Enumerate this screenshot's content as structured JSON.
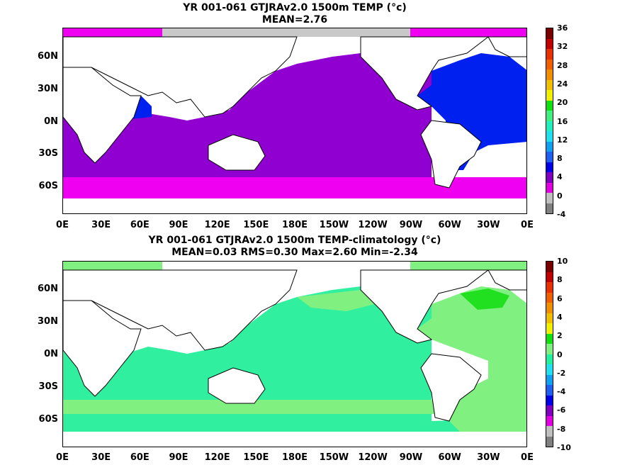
{
  "top_panel": {
    "title_line1": "YR 001-061 GTJRAv2.0 1500m TEMP (°c)",
    "title_line2": "MEAN=2.76",
    "colorbar_labels": [
      "36",
      "32",
      "28",
      "24",
      "20",
      "16",
      "12",
      "8",
      "4",
      "0",
      "-4"
    ],
    "colorbar_colors": [
      "#7a0000",
      "#c00000",
      "#e83000",
      "#f06000",
      "#f09000",
      "#f0c000",
      "#f0f000",
      "#10e010",
      "#40f080",
      "#20f0c0",
      "#20e0f0",
      "#10a0f0",
      "#2060f0",
      "#0000e8",
      "#8000c0",
      "#e000e0",
      "#c0c0c0",
      "#808080"
    ]
  },
  "bottom_panel": {
    "title_line1": "YR 001-061 GTJRAv2.0 1500m TEMP-climatology (°c)",
    "title_line2": "MEAN=0.03   RMS=0.30   Max=2.60   Min=-2.34",
    "colorbar_labels": [
      "10",
      "8",
      "6",
      "4",
      "2",
      "0",
      "-2",
      "-4",
      "-6",
      "-8",
      "-10"
    ],
    "colorbar_colors": [
      "#7a0000",
      "#c00000",
      "#e83000",
      "#f06000",
      "#f09000",
      "#f0c000",
      "#f0f000",
      "#10e010",
      "#80f080",
      "#20f0a0",
      "#20e0f0",
      "#10a0f0",
      "#2060f0",
      "#0000e8",
      "#8000c0",
      "#e000e0",
      "#c0c0c0",
      "#808080"
    ]
  },
  "lat_labels": [
    "60N",
    "30N",
    "0N",
    "30S",
    "60S"
  ],
  "lon_labels": [
    "0E",
    "30E",
    "60E",
    "90E",
    "120E",
    "150E",
    "180E",
    "150W",
    "120W",
    "90W",
    "60W",
    "30W",
    "0E"
  ],
  "colors": {
    "top_ocean": "#9000d0",
    "top_atlantic": "#0020f0",
    "top_south": "#f000f0",
    "top_ice": "#c8c8c8",
    "bot_ocean": "#30f0a0",
    "bot_atlantic": "#80f080",
    "bot_hot": "#20e020",
    "bot_ice": "#c8c8c8",
    "land": "#ffffff"
  }
}
